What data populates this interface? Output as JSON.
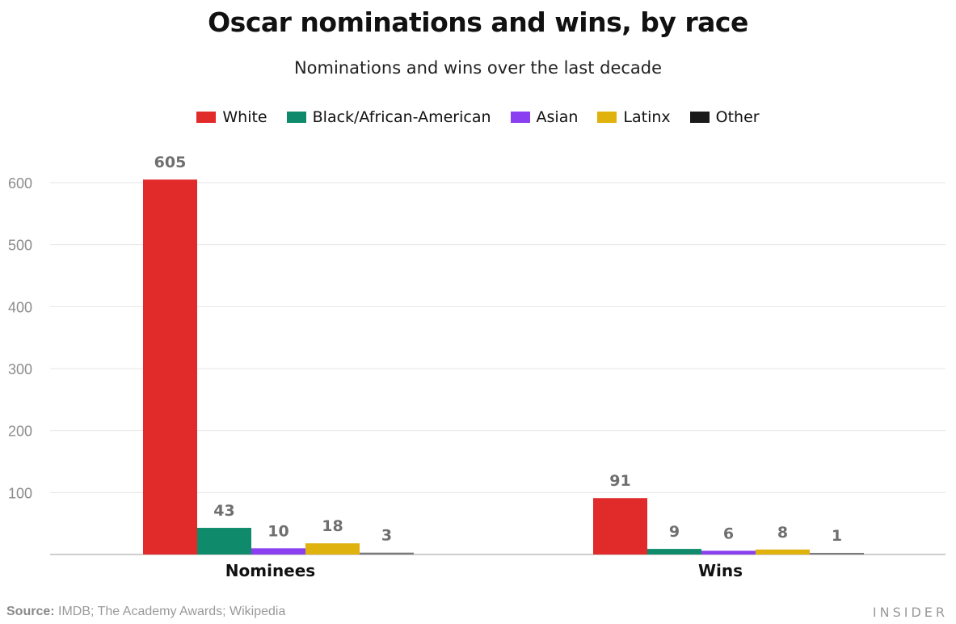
{
  "chart_data": {
    "type": "bar",
    "title": "Oscar nominations and wins, by race",
    "subtitle": "Nominations and wins over the last decade",
    "categories": [
      "Nominees",
      "Wins"
    ],
    "series": [
      {
        "name": "White",
        "values": [
          605,
          91
        ],
        "color": "#e12a2a"
      },
      {
        "name": "Black/African-American",
        "values": [
          43,
          9
        ],
        "color": "#0f8a6b"
      },
      {
        "name": "Asian",
        "values": [
          10,
          6
        ],
        "color": "#8a3ff0"
      },
      {
        "name": "Latinx",
        "values": [
          18,
          8
        ],
        "color": "#e0b20e"
      },
      {
        "name": "Other",
        "values": [
          3,
          1
        ],
        "color": "#1a1a1a"
      }
    ],
    "yticks": [
      100,
      200,
      300,
      400,
      500,
      600
    ],
    "ylim": [
      0,
      640
    ],
    "xlabel": "",
    "ylabel": "",
    "grid": true,
    "legend_position": "top-center"
  },
  "footer": {
    "source_label": "Source:",
    "source_text": "IMDB; The Academy Awards; Wikipedia",
    "brand": "INSIDER"
  }
}
